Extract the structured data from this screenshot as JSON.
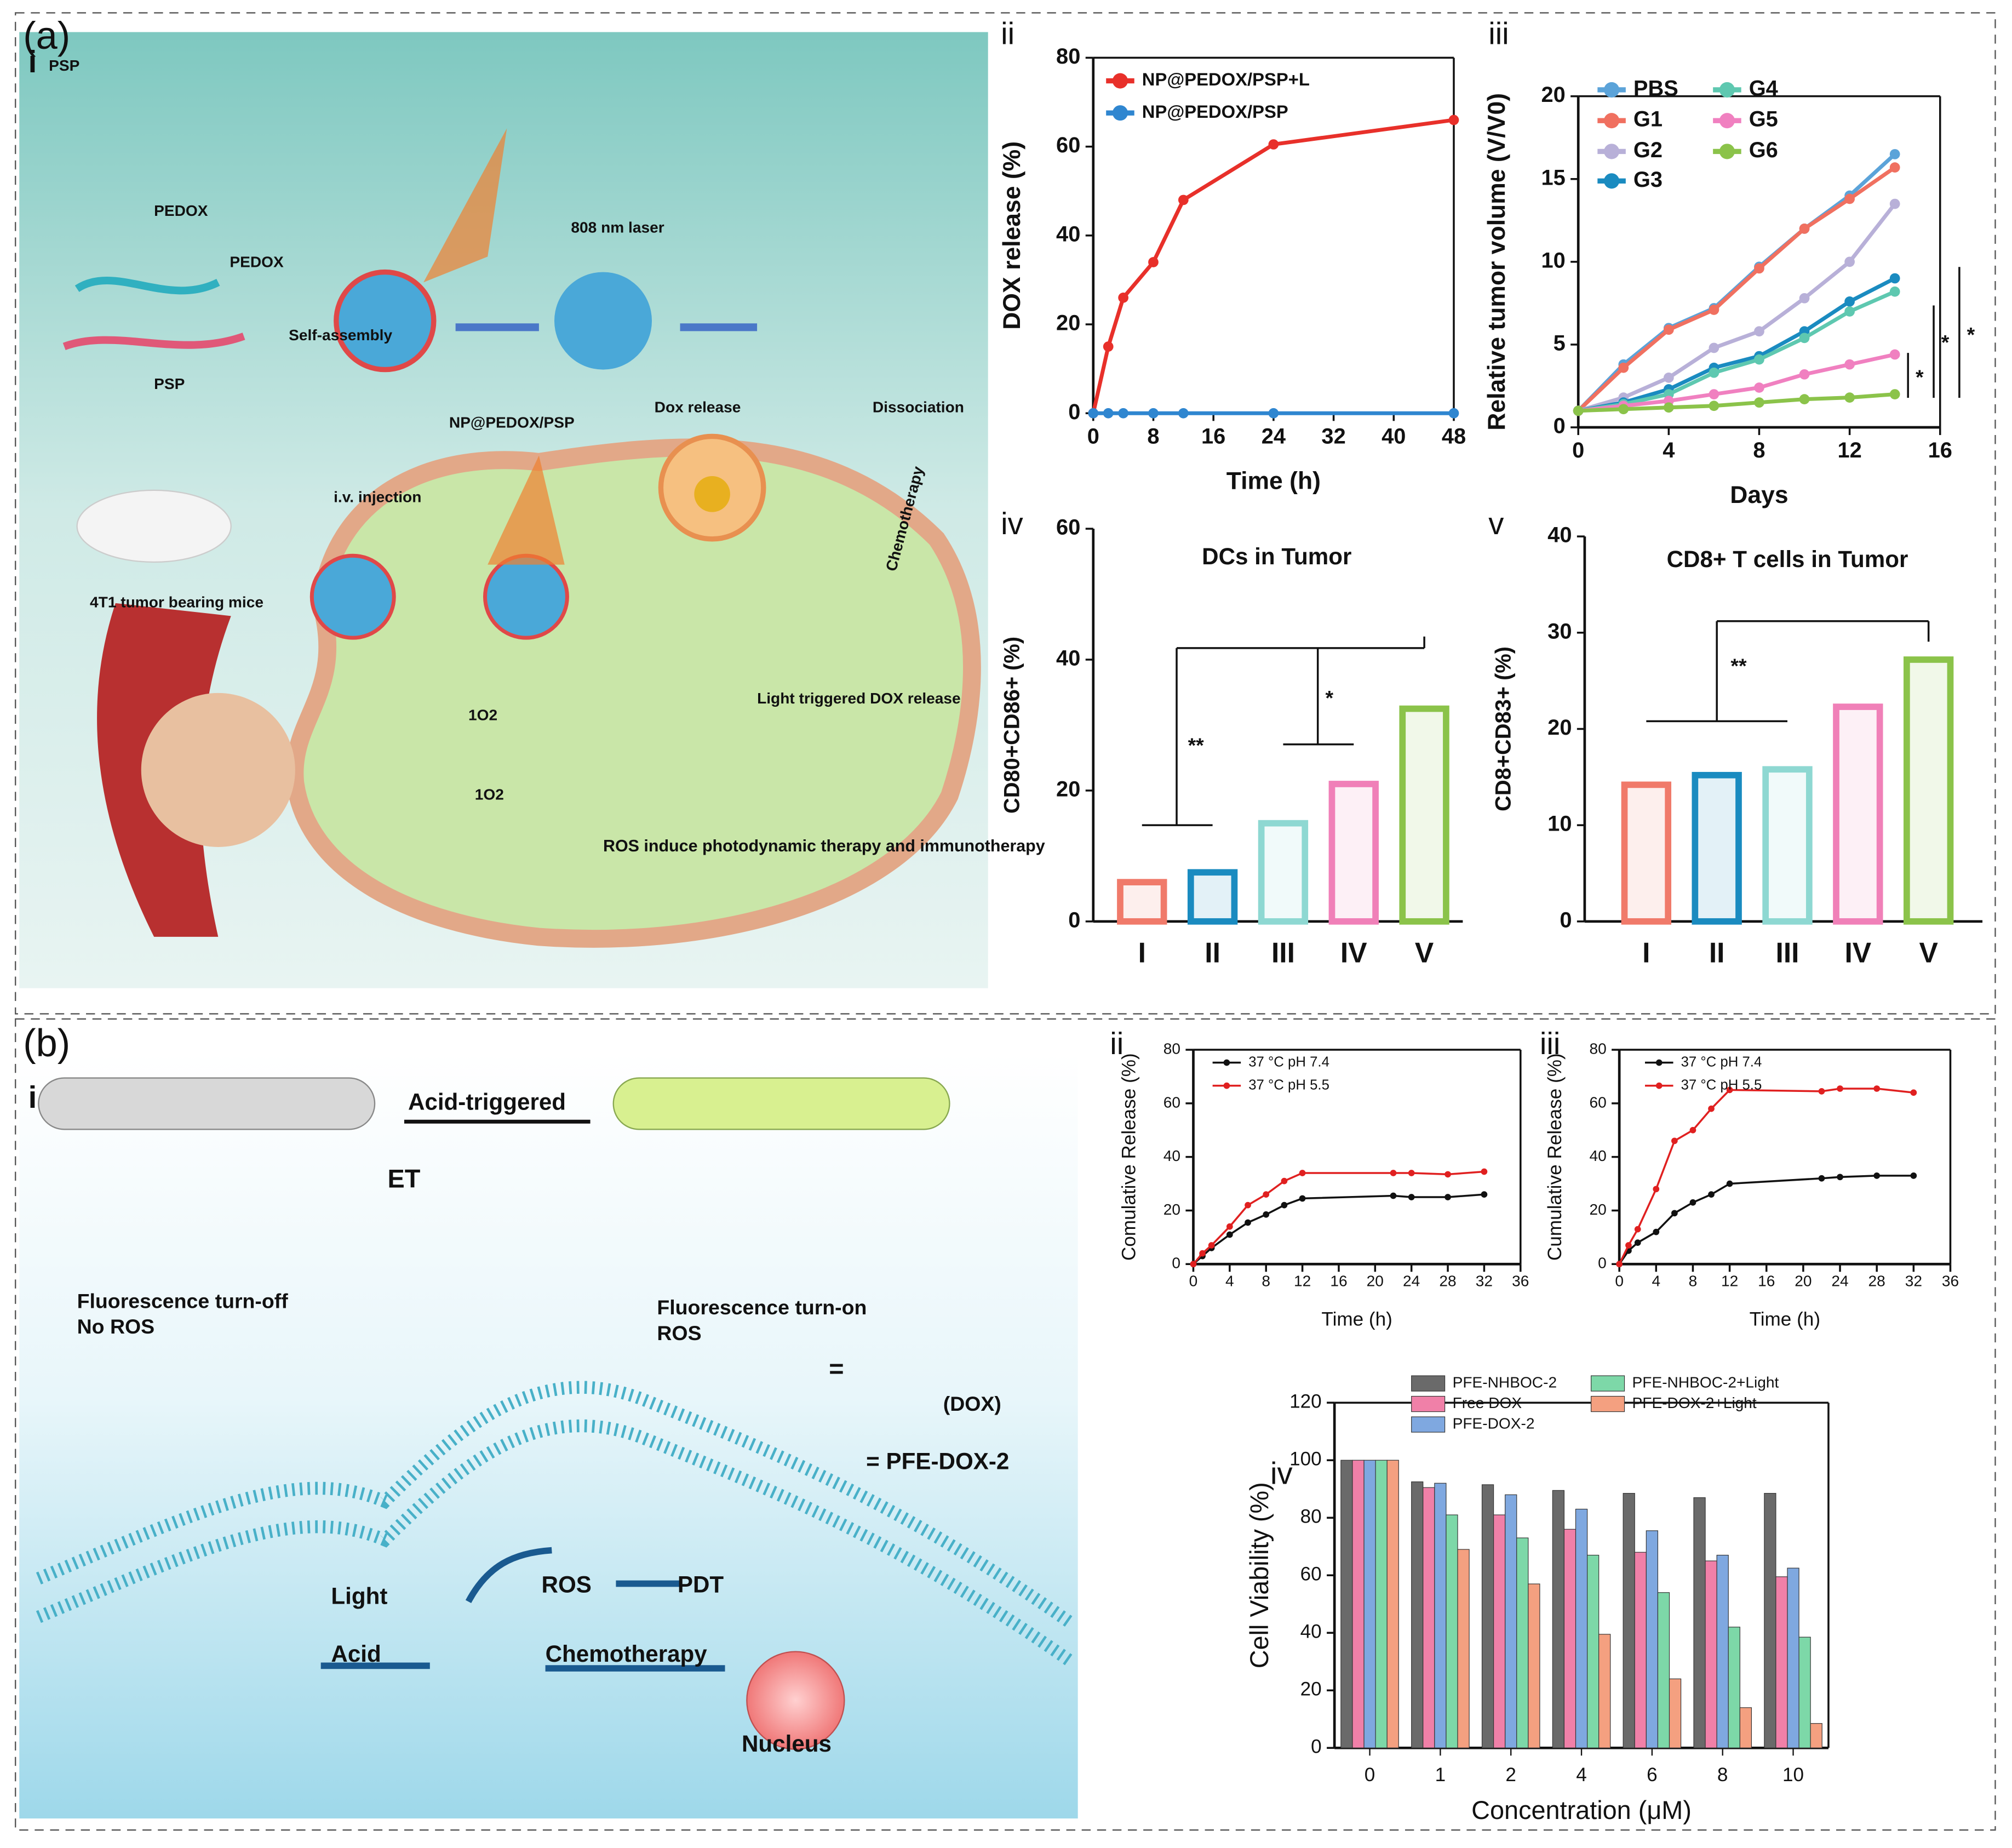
{
  "panel_labels": [
    "(a)",
    "(b)"
  ],
  "diagram_a": {
    "panel": "i",
    "texts": [
      "PSP",
      "PEDOX",
      "PEDOX",
      "PSP",
      "808 nm laser",
      "Self-assembly",
      "NP@PEDOX/PSP",
      "Dox release",
      "Dissociation",
      "i.v. injection",
      "4T1 tumor bearing mice",
      "Chemotherapy",
      "Light triggered DOX release",
      "1O2",
      "1O2",
      "ROS induce photodynamic therapy and immunotherapy"
    ]
  },
  "diagram_b": {
    "panel": "i",
    "texts": [
      "Acid-triggered",
      "ET",
      "Fluorescence turn-off",
      "No ROS",
      "Fluorescence turn-on",
      "ROS",
      "(DOX)",
      "=",
      "= PFE-DOX-2",
      "Light",
      "ROS",
      "PDT",
      "Acid",
      "Chemotherapy",
      "Nucleus"
    ]
  },
  "chart_data": [
    {
      "type": "line",
      "panel": "ii",
      "xlabel": "Time (h)",
      "ylabel": "DOX release  (%)",
      "x": [
        0,
        2,
        4,
        8,
        12,
        24,
        48
      ],
      "xlim": [
        0,
        48
      ],
      "xticks": [
        0,
        8,
        16,
        24,
        32,
        40,
        48
      ],
      "ylim": [
        0,
        80
      ],
      "yticks": [
        0,
        20,
        40,
        60,
        80
      ],
      "legend": "upper left",
      "series": [
        {
          "name": "NP@PEDOX/PSP+L",
          "color": "#e8302a",
          "values": [
            0,
            15,
            26,
            34,
            48,
            60.5,
            66
          ]
        },
        {
          "name": "NP@PEDOX/PSP",
          "color": "#2f86d0",
          "values": [
            0,
            0,
            0,
            0,
            0,
            0,
            0
          ]
        }
      ]
    },
    {
      "type": "line",
      "panel": "iii",
      "xlabel": "Days",
      "ylabel": "Relative tumor volume (V/V0)",
      "x": [
        0,
        2,
        4,
        6,
        8,
        10,
        12,
        14
      ],
      "xlim": [
        0,
        16
      ],
      "xticks": [
        0,
        4,
        8,
        12,
        16
      ],
      "ylim": [
        0,
        20
      ],
      "yticks": [
        0,
        5,
        10,
        15,
        20
      ],
      "legend": "upper left",
      "annotations": [
        "*",
        "*",
        "*"
      ],
      "series": [
        {
          "name": "PBS",
          "color": "#5ba3d9",
          "values": [
            1,
            3.8,
            6,
            7.2,
            9.7,
            12,
            14,
            16.5
          ]
        },
        {
          "name": "G1",
          "color": "#f07060",
          "values": [
            1,
            3.6,
            5.9,
            7.1,
            9.6,
            12,
            13.8,
            15.7
          ]
        },
        {
          "name": "G2",
          "color": "#b8b0d8",
          "values": [
            1,
            1.8,
            3,
            4.8,
            5.8,
            7.8,
            10,
            13.5
          ]
        },
        {
          "name": "G3",
          "color": "#1a8bc0",
          "values": [
            1,
            1.5,
            2.3,
            3.6,
            4.3,
            5.8,
            7.6,
            9
          ]
        },
        {
          "name": "G4",
          "color": "#5ec8b0",
          "values": [
            1,
            1.4,
            2,
            3.3,
            4.1,
            5.4,
            7,
            8.2
          ]
        },
        {
          "name": "G5",
          "color": "#f080c0",
          "values": [
            1,
            1.3,
            1.6,
            2,
            2.4,
            3.2,
            3.8,
            4.4
          ]
        },
        {
          "name": "G6",
          "color": "#8bc34a",
          "values": [
            1,
            1.1,
            1.2,
            1.3,
            1.5,
            1.7,
            1.8,
            2
          ]
        }
      ]
    },
    {
      "type": "bar",
      "panel": "iv",
      "title": "DCs in Tumor",
      "ylabel": "CD80+CD86+ (%)",
      "categories": [
        "I",
        "II",
        "III",
        "IV",
        "V"
      ],
      "values": [
        6,
        7.5,
        15,
        21,
        32.5
      ],
      "colors": [
        "#f07a6a",
        "#1a8bc0",
        "#8ed8d2",
        "#f080b8",
        "#8bc34a"
      ],
      "ylim": [
        0,
        60
      ],
      "yticks": [
        0,
        20,
        40,
        60
      ],
      "annotations": [
        "**",
        "*"
      ]
    },
    {
      "type": "bar",
      "panel": "v",
      "title": "CD8+ T cells in Tumor",
      "ylabel": "CD8+CD83+ (%)",
      "categories": [
        "I",
        "II",
        "III",
        "IV",
        "V"
      ],
      "values": [
        14.2,
        15.2,
        15.8,
        22.3,
        27.2
      ],
      "colors": [
        "#f07a6a",
        "#1a8bc0",
        "#8ed8d2",
        "#f080b8",
        "#8bc34a"
      ],
      "ylim": [
        0,
        40
      ],
      "yticks": [
        0,
        10,
        20,
        30,
        40
      ],
      "annotations": [
        "**"
      ]
    },
    {
      "type": "line",
      "panel": "ii",
      "xlabel": "Time (h)",
      "ylabel": "Comulative Release (%)",
      "x": [
        0,
        1,
        2,
        4,
        6,
        8,
        10,
        12,
        22,
        24,
        28,
        32
      ],
      "xlim": [
        0,
        36
      ],
      "xticks": [
        0,
        4,
        8,
        12,
        16,
        20,
        24,
        28,
        32,
        36
      ],
      "ylim": [
        0,
        80
      ],
      "yticks": [
        0,
        20,
        40,
        60,
        80
      ],
      "legend": "upper left",
      "series": [
        {
          "name": "37 °C pH 7.4",
          "color": "#111111",
          "values": [
            0,
            3,
            6,
            11,
            15.5,
            18.5,
            22,
            24.5,
            25.5,
            25,
            25,
            26
          ]
        },
        {
          "name": "37 °C pH 5.5",
          "color": "#e02020",
          "values": [
            0,
            4,
            7,
            14,
            22,
            26,
            31,
            34,
            34,
            34,
            33.5,
            34.5
          ]
        }
      ]
    },
    {
      "type": "line",
      "panel": "iii",
      "xlabel": "Time (h)",
      "ylabel": "Cumulative Release (%)",
      "x": [
        0,
        1,
        2,
        4,
        6,
        8,
        10,
        12,
        22,
        24,
        28,
        32
      ],
      "xlim": [
        0,
        36
      ],
      "xticks": [
        0,
        4,
        8,
        12,
        16,
        20,
        24,
        28,
        32,
        36
      ],
      "ylim": [
        0,
        80
      ],
      "yticks": [
        0,
        20,
        40,
        60,
        80
      ],
      "legend": "upper left",
      "series": [
        {
          "name": "37 °C pH 7.4",
          "color": "#111111",
          "values": [
            0,
            5,
            8,
            12,
            19,
            23,
            26,
            30,
            32,
            32.5,
            33,
            33
          ]
        },
        {
          "name": "37 °C pH 5.5",
          "color": "#e02020",
          "values": [
            0,
            7,
            13,
            28,
            46,
            50,
            58,
            65,
            64.5,
            65.5,
            65.5,
            64
          ]
        }
      ]
    },
    {
      "type": "grouped_bar",
      "panel": "iv",
      "xlabel": "Concentration (μM)",
      "ylabel": "Cell Viability (%)",
      "categories": [
        "0",
        "1",
        "2",
        "4",
        "6",
        "8",
        "10"
      ],
      "ylim": [
        0,
        120
      ],
      "yticks": [
        0,
        20,
        40,
        60,
        80,
        100,
        120
      ],
      "legend": "upper center",
      "series": [
        {
          "name": "PFE-NHBOC-2",
          "color": "#6a6a6a",
          "values": [
            100,
            92.5,
            91.5,
            89.5,
            88.5,
            87,
            88.5
          ]
        },
        {
          "name": "Free DOX",
          "color": "#f080a8",
          "values": [
            100,
            90.5,
            81,
            76,
            68,
            65,
            59.5
          ]
        },
        {
          "name": "PFE-DOX-2",
          "color": "#7fa8e0",
          "values": [
            100,
            92,
            88,
            83,
            75.5,
            67,
            62.5
          ]
        },
        {
          "name": "PFE-NHBOC-2+Light",
          "color": "#7dd8a8",
          "values": [
            100,
            81,
            73,
            67,
            54,
            42,
            38.5
          ]
        },
        {
          "name": "PFE-DOX-2+Light",
          "color": "#f4a080",
          "values": [
            100,
            69,
            57,
            39.5,
            24,
            14,
            8.5
          ]
        }
      ]
    }
  ]
}
